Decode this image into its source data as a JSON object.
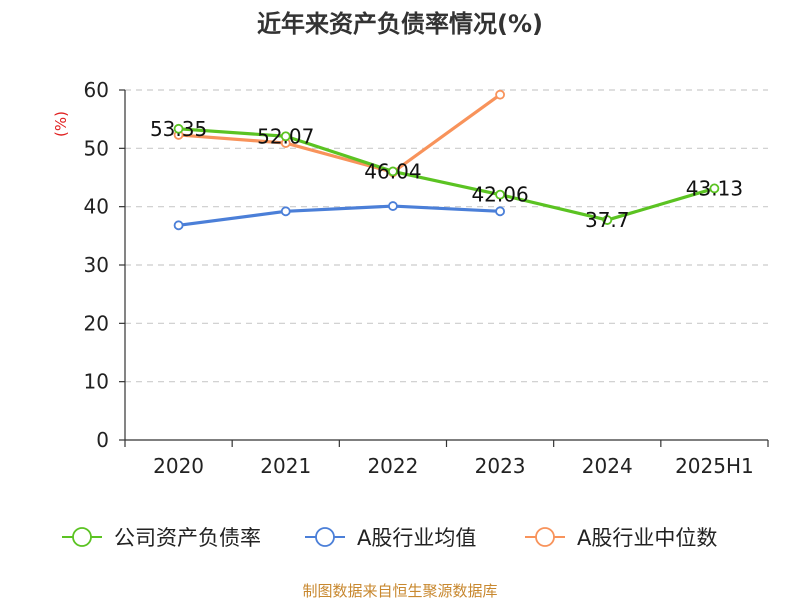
{
  "colors": {
    "green": "#5bc322",
    "blue": "#4b7fd8",
    "orange": "#f8935b",
    "ylabel": "#e02020",
    "footer": "#c8882f",
    "grid": "#cccccc",
    "axis": "#333333"
  },
  "footer": "制图数据来自恒生聚源数据库",
  "chart_data": {
    "type": "line",
    "title": "近年来资产负债率情况(%)",
    "ylabel": "(%)",
    "xlabel": "",
    "ylim": [
      0,
      60
    ],
    "yticks": [
      "0",
      "10",
      "20",
      "30",
      "40",
      "50",
      "60"
    ],
    "grid": true,
    "legend": "bottom",
    "categories": [
      "2020",
      "2021",
      "2022",
      "2023",
      "2024",
      "2025H1"
    ],
    "series": [
      {
        "name": "公司资产负债率",
        "color": "green",
        "values": [
          53.35,
          52.07,
          46.04,
          42.06,
          37.7,
          43.13
        ],
        "labels": [
          "53.35",
          "52.07",
          "46.04",
          "42.06",
          "37.7",
          "43.13"
        ]
      },
      {
        "name": "A股行业均值",
        "color": "blue",
        "values": [
          36.8,
          39.2,
          40.1,
          39.2,
          null,
          null
        ]
      },
      {
        "name": "A股行业中位数",
        "color": "orange",
        "values": [
          52.3,
          50.9,
          45.9,
          59.2,
          null,
          null
        ]
      }
    ]
  }
}
